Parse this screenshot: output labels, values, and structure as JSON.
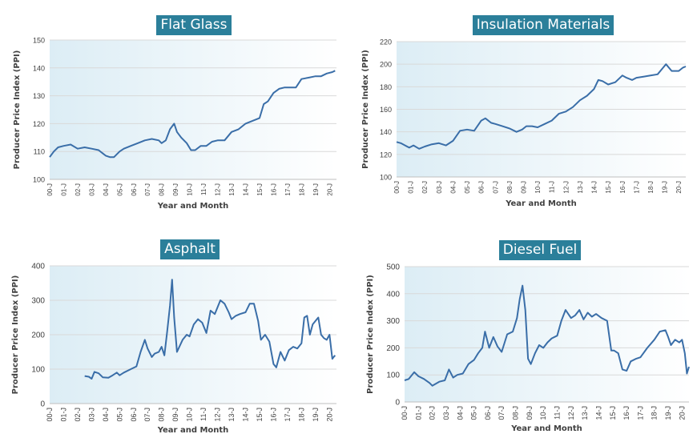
{
  "chart_data": [
    {
      "type": "line",
      "title": "Flat Glass",
      "xlabel": "Year and Month",
      "ylabel": "Producer Price Index (PPI)",
      "ylim": [
        100,
        150
      ],
      "yticks": [
        100,
        110,
        120,
        130,
        140,
        150
      ],
      "xtick_labels": [
        "00-J",
        "01-J",
        "02-J",
        "03-J",
        "04-J",
        "05-J",
        "06-J",
        "07-J",
        "08-J",
        "09-J",
        "10-J",
        "11-J",
        "12-J",
        "13-J",
        "14-J",
        "15-J",
        "16-J",
        "17-J",
        "18-J",
        "19-J",
        "20-J"
      ],
      "x_unit": "year",
      "series": [
        {
          "x": [
            2000.0,
            2000.3,
            2000.6,
            2001.0,
            2001.5,
            2002.0,
            2002.5,
            2003.0,
            2003.5,
            2004.0,
            2004.3,
            2004.6,
            2005.0,
            2005.3,
            2005.8,
            2006.3,
            2006.8,
            2007.3,
            2007.8,
            2008.0,
            2008.3,
            2008.6,
            2008.9,
            2009.1,
            2009.4,
            2009.8,
            2010.1,
            2010.4,
            2010.8,
            2011.2,
            2011.6,
            2012.0,
            2012.5,
            2013.0,
            2013.5,
            2014.0,
            2014.5,
            2015.0,
            2015.3,
            2015.6,
            2016.0,
            2016.4,
            2016.8,
            2017.2,
            2017.6,
            2018.0,
            2018.5,
            2019.0,
            2019.4,
            2019.8,
            2020.2,
            2020.4
          ],
          "y": [
            108,
            110,
            111.5,
            112,
            112.5,
            111,
            111.5,
            111,
            110.5,
            108.5,
            108,
            108,
            110,
            111,
            112,
            113,
            114,
            114.5,
            114,
            113,
            114,
            118,
            120,
            117,
            115,
            113,
            110.5,
            110.5,
            112,
            112,
            113.5,
            114,
            114,
            117,
            118,
            120,
            121,
            122,
            127,
            128,
            131,
            132.5,
            133,
            133,
            133,
            136,
            136.5,
            137,
            137,
            138,
            138.5,
            139
          ]
        }
      ]
    },
    {
      "type": "line",
      "title": "Insulation Materials",
      "xlabel": "Year and Month",
      "ylabel": "Producer Price Index (PPI)",
      "ylim": [
        100,
        220
      ],
      "yticks": [
        100,
        120,
        140,
        160,
        180,
        200,
        220
      ],
      "xtick_labels": [
        "00-J",
        "01-J",
        "02-J",
        "03-J",
        "04-J",
        "05-J",
        "06-J",
        "07-J",
        "08-J",
        "09-J",
        "10-J",
        "11-J",
        "12-J",
        "13-J",
        "14-J",
        "15-J",
        "16-J",
        "17-J",
        "18-J",
        "19-J",
        "20-J"
      ],
      "x_unit": "year",
      "series": [
        {
          "x": [
            2000.0,
            2000.3,
            2000.6,
            2000.9,
            2001.2,
            2001.6,
            2002.0,
            2002.5,
            2003.0,
            2003.5,
            2004.0,
            2004.5,
            2005.0,
            2005.5,
            2006.0,
            2006.3,
            2006.7,
            2007.0,
            2007.5,
            2008.0,
            2008.5,
            2008.9,
            2009.2,
            2009.6,
            2010.0,
            2010.5,
            2011.0,
            2011.5,
            2012.0,
            2012.5,
            2013.0,
            2013.5,
            2014.0,
            2014.3,
            2014.6,
            2015.0,
            2015.5,
            2016.0,
            2016.3,
            2016.7,
            2017.0,
            2017.5,
            2018.0,
            2018.5,
            2018.9,
            2019.1,
            2019.5,
            2020.0,
            2020.3,
            2020.5
          ],
          "y": [
            131,
            130,
            128,
            126,
            128,
            125,
            127,
            129,
            130,
            128,
            132,
            141,
            142,
            141,
            150,
            152,
            148,
            147,
            145,
            143,
            140,
            142,
            145,
            145,
            144,
            147,
            150,
            156,
            158,
            162,
            168,
            172,
            178,
            186,
            185,
            182,
            184,
            190,
            188,
            186,
            188,
            189,
            190,
            191,
            197,
            200,
            194,
            194,
            197,
            198
          ]
        }
      ]
    },
    {
      "type": "line",
      "title": "Asphalt",
      "xlabel": "Year and Month",
      "ylabel": "Producer Price Index (PPI)",
      "ylim": [
        0,
        400
      ],
      "yticks": [
        0,
        100,
        200,
        300,
        400
      ],
      "xtick_labels": [
        "00-J",
        "01-J",
        "02-J",
        "03-J",
        "04-J",
        "05-J",
        "06-J",
        "07-J",
        "08-J",
        "09-J",
        "10-J",
        "11-J",
        "12-J",
        "13-J",
        "14-J",
        "15-J",
        "16-J",
        "17-J",
        "18-J",
        "19-J",
        "20-J"
      ],
      "x_unit": "year",
      "series": [
        {
          "x": [
            2002.5,
            2002.8,
            2003.0,
            2003.2,
            2003.5,
            2003.8,
            2004.2,
            2004.5,
            2004.8,
            2005.0,
            2005.3,
            2005.8,
            2006.2,
            2006.5,
            2006.8,
            2007.0,
            2007.3,
            2007.5,
            2007.8,
            2008.0,
            2008.2,
            2008.4,
            2008.6,
            2008.75,
            2008.9,
            2009.1,
            2009.5,
            2009.8,
            2010.0,
            2010.3,
            2010.6,
            2010.9,
            2011.2,
            2011.5,
            2011.8,
            2012.0,
            2012.2,
            2012.5,
            2012.8,
            2013.0,
            2013.3,
            2013.6,
            2014.0,
            2014.3,
            2014.6,
            2014.9,
            2015.1,
            2015.4,
            2015.7,
            2016.0,
            2016.2,
            2016.5,
            2016.8,
            2017.1,
            2017.4,
            2017.7,
            2018.0,
            2018.2,
            2018.4,
            2018.6,
            2018.8,
            2019.0,
            2019.2,
            2019.4,
            2019.6,
            2019.8,
            2020.0,
            2020.2,
            2020.3,
            2020.4
          ],
          "y": [
            80,
            78,
            72,
            92,
            88,
            76,
            75,
            82,
            90,
            82,
            90,
            100,
            108,
            150,
            185,
            160,
            135,
            145,
            150,
            165,
            140,
            210,
            285,
            360,
            250,
            150,
            185,
            200,
            195,
            230,
            245,
            235,
            205,
            270,
            260,
            280,
            300,
            290,
            265,
            245,
            255,
            260,
            265,
            290,
            290,
            240,
            185,
            200,
            180,
            115,
            105,
            150,
            125,
            155,
            165,
            160,
            175,
            250,
            255,
            200,
            230,
            240,
            250,
            200,
            190,
            185,
            200,
            130,
            135,
            140
          ]
        }
      ]
    },
    {
      "type": "line",
      "title": "Diesel Fuel",
      "xlabel": "Year and Month",
      "ylabel": "Producer Price Index (PPI)",
      "ylim": [
        0,
        500
      ],
      "yticks": [
        0,
        100,
        200,
        300,
        400,
        500
      ],
      "xtick_labels": [
        "00-J",
        "01-J",
        "02-J",
        "03-J",
        "04-J",
        "05-J",
        "06-J",
        "07-J",
        "08-J",
        "09-J",
        "10-J",
        "11-J",
        "12-J",
        "13-J",
        "14-J",
        "15-J",
        "16-J",
        "17-J",
        "18-J",
        "19-J",
        "20-J"
      ],
      "x_unit": "year",
      "series": [
        {
          "x": [
            2000.0,
            2000.3,
            2000.7,
            2001.0,
            2001.4,
            2001.8,
            2002.0,
            2002.5,
            2002.9,
            2003.2,
            2003.5,
            2003.8,
            2004.2,
            2004.6,
            2005.0,
            2005.3,
            2005.6,
            2005.8,
            2006.1,
            2006.4,
            2006.7,
            2007.0,
            2007.4,
            2007.8,
            2008.1,
            2008.3,
            2008.5,
            2008.7,
            2008.9,
            2009.1,
            2009.4,
            2009.7,
            2010.0,
            2010.3,
            2010.6,
            2011.0,
            2011.3,
            2011.6,
            2012.0,
            2012.3,
            2012.6,
            2012.9,
            2013.2,
            2013.5,
            2013.8,
            2014.2,
            2014.6,
            2014.9,
            2015.1,
            2015.4,
            2015.7,
            2016.0,
            2016.3,
            2016.7,
            2017.0,
            2017.5,
            2018.0,
            2018.4,
            2018.8,
            2019.0,
            2019.2,
            2019.5,
            2019.8,
            2020.0,
            2020.2,
            2020.35,
            2020.5
          ],
          "y": [
            80,
            85,
            110,
            95,
            85,
            70,
            60,
            75,
            80,
            120,
            90,
            100,
            105,
            140,
            155,
            180,
            200,
            260,
            200,
            240,
            205,
            185,
            250,
            260,
            310,
            380,
            430,
            340,
            160,
            140,
            180,
            210,
            200,
            220,
            235,
            245,
            300,
            340,
            310,
            320,
            340,
            305,
            330,
            315,
            325,
            310,
            300,
            190,
            190,
            180,
            120,
            115,
            150,
            160,
            165,
            200,
            230,
            260,
            265,
            240,
            210,
            230,
            220,
            230,
            180,
            105,
            130
          ]
        }
      ]
    }
  ]
}
